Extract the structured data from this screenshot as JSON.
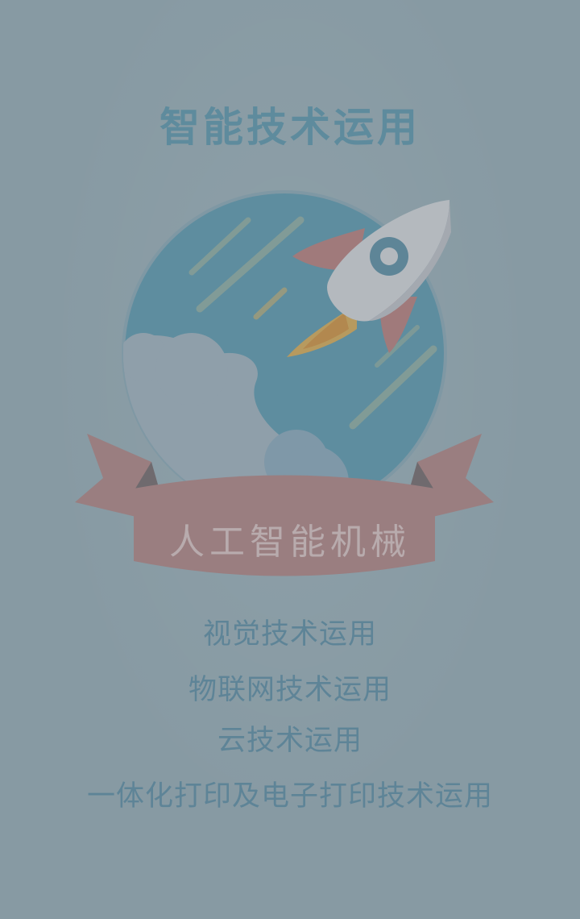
{
  "page": {
    "title": "智能技术运用",
    "ribbon_label": "人工智能机械",
    "features": [
      "视觉技术运用",
      "物联网技术运用",
      "云技术运用",
      "一体化打印及电子打印技术运用"
    ]
  },
  "colors": {
    "background": "#879aa3",
    "title": "#5e8b9d",
    "globe": "#5e8d9f",
    "cloud": "#8f9faa",
    "ribbon": "#9a7e80",
    "rocket_body": "#b4b9be",
    "rocket_fin": "#a07a7b",
    "flame": "#b79a5f",
    "feature_text": "#5e8497"
  },
  "icons": {
    "illustration": "rocket-globe-illustration"
  }
}
